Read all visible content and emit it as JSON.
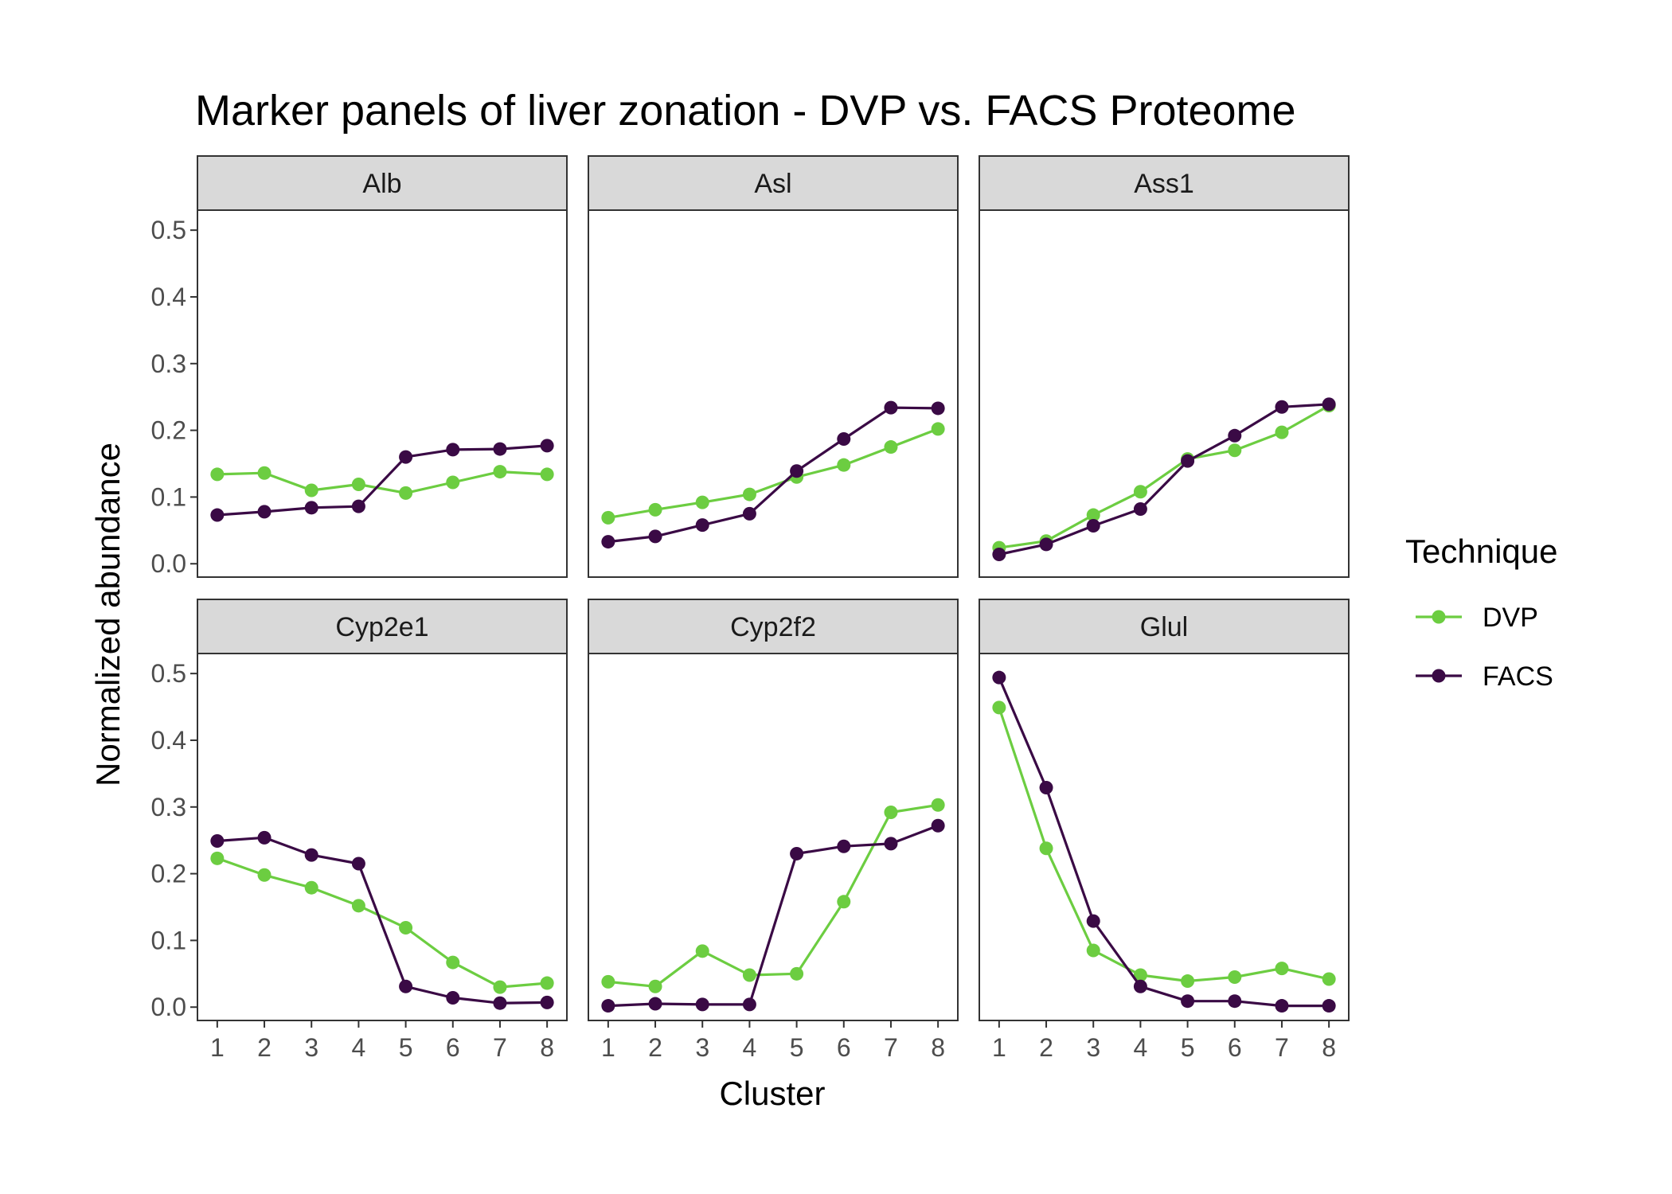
{
  "chart_data": {
    "type": "line",
    "title": "Marker panels of liver zonation - DVP vs. FACS Proteome",
    "xlabel": "Cluster",
    "ylabel": "Normalized abundance",
    "x": [
      1,
      2,
      3,
      4,
      5,
      6,
      7,
      8
    ],
    "ylim": [
      -0.02,
      0.53
    ],
    "yticks": [
      0.0,
      0.1,
      0.2,
      0.3,
      0.4,
      0.5
    ],
    "ytick_labels": [
      "0.0",
      "0.1",
      "0.2",
      "0.3",
      "0.4",
      "0.5"
    ],
    "xtick_labels": [
      "1",
      "2",
      "3",
      "4",
      "5",
      "6",
      "7",
      "8"
    ],
    "grid": false,
    "legend": {
      "title": "Technique",
      "placement": "right",
      "entries": [
        "DVP",
        "FACS"
      ]
    },
    "colors": {
      "DVP": "#6ccd41",
      "FACS": "#3a0a45"
    },
    "facets": [
      {
        "name": "Alb",
        "series": [
          {
            "name": "DVP",
            "values": [
              0.134,
              0.136,
              0.11,
              0.119,
              0.106,
              0.122,
              0.138,
              0.134
            ]
          },
          {
            "name": "FACS",
            "values": [
              0.073,
              0.078,
              0.084,
              0.086,
              0.16,
              0.171,
              0.172,
              0.177
            ]
          }
        ]
      },
      {
        "name": "Asl",
        "series": [
          {
            "name": "DVP",
            "values": [
              0.069,
              0.081,
              0.092,
              0.104,
              0.13,
              0.148,
              0.175,
              0.202
            ]
          },
          {
            "name": "FACS",
            "values": [
              0.033,
              0.041,
              0.058,
              0.075,
              0.139,
              0.187,
              0.234,
              0.233
            ]
          }
        ]
      },
      {
        "name": "Ass1",
        "series": [
          {
            "name": "DVP",
            "values": [
              0.024,
              0.034,
              0.073,
              0.108,
              0.157,
              0.17,
              0.197,
              0.237
            ]
          },
          {
            "name": "FACS",
            "values": [
              0.014,
              0.029,
              0.057,
              0.082,
              0.154,
              0.192,
              0.235,
              0.239
            ]
          }
        ]
      },
      {
        "name": "Cyp2e1",
        "series": [
          {
            "name": "DVP",
            "values": [
              0.223,
              0.198,
              0.179,
              0.152,
              0.119,
              0.067,
              0.03,
              0.036
            ]
          },
          {
            "name": "FACS",
            "values": [
              0.249,
              0.254,
              0.228,
              0.215,
              0.031,
              0.014,
              0.006,
              0.007
            ]
          }
        ]
      },
      {
        "name": "Cyp2f2",
        "series": [
          {
            "name": "DVP",
            "values": [
              0.038,
              0.031,
              0.084,
              0.048,
              0.05,
              0.158,
              0.292,
              0.303
            ]
          },
          {
            "name": "FACS",
            "values": [
              0.002,
              0.005,
              0.004,
              0.004,
              0.23,
              0.241,
              0.245,
              0.272
            ]
          }
        ]
      },
      {
        "name": "Glul",
        "series": [
          {
            "name": "DVP",
            "values": [
              0.449,
              0.238,
              0.085,
              0.048,
              0.039,
              0.045,
              0.058,
              0.042
            ]
          },
          {
            "name": "FACS",
            "values": [
              0.494,
              0.329,
              0.129,
              0.031,
              0.009,
              0.009,
              0.002,
              0.002
            ]
          }
        ]
      }
    ]
  }
}
